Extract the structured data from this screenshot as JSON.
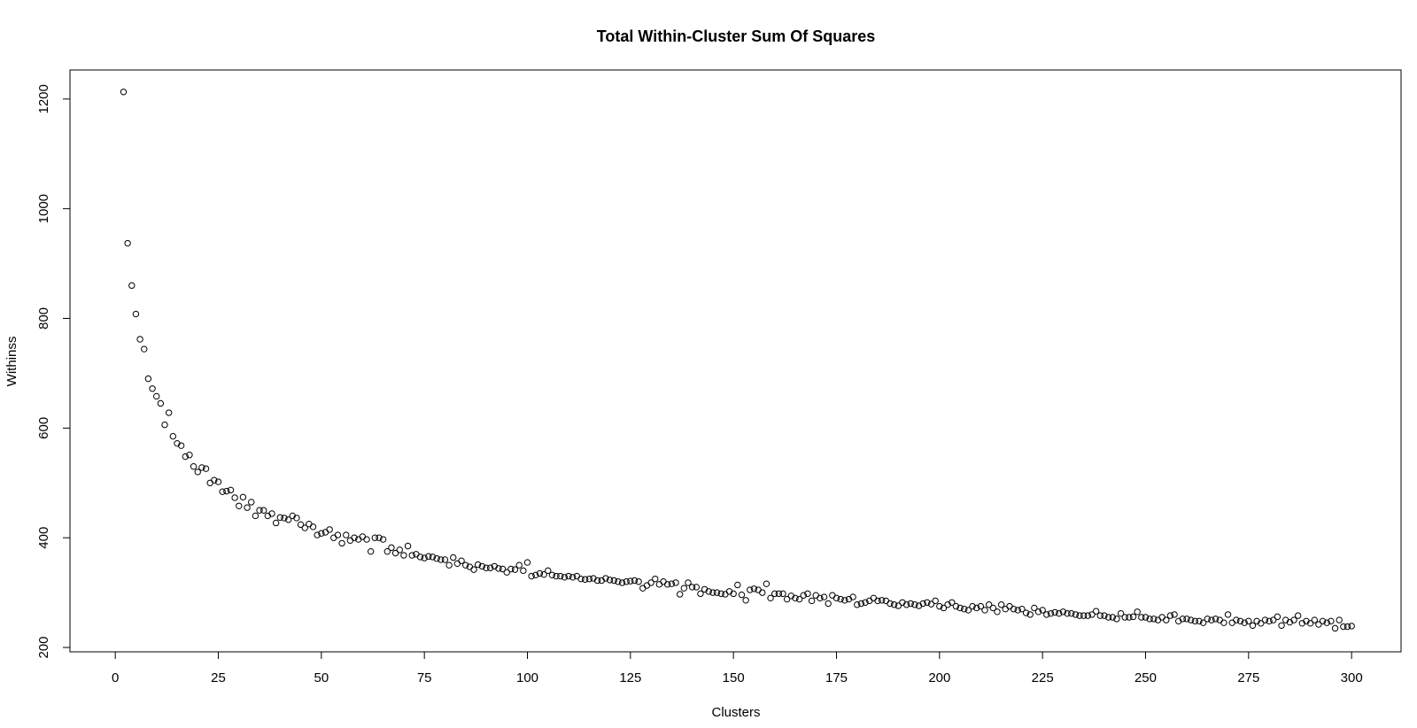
{
  "chart_data": {
    "type": "scatter",
    "title": "Total Within-Cluster Sum Of Squares",
    "x_label": "Clusters",
    "y_label": "Withinss",
    "xlim": [
      -11,
      312
    ],
    "ylim": [
      192,
      1253
    ],
    "xticks": [
      0,
      25,
      50,
      75,
      100,
      125,
      150,
      175,
      200,
      225,
      250,
      275,
      300
    ],
    "yticks": [
      200,
      400,
      600,
      800,
      1000,
      1200
    ],
    "grid": false,
    "color": "#000000",
    "x": [
      2,
      3,
      4,
      5,
      6,
      7,
      8,
      9,
      10,
      11,
      12,
      13,
      14,
      15,
      16,
      17,
      18,
      19,
      20,
      21,
      22,
      23,
      24,
      25,
      26,
      27,
      28,
      29,
      30,
      31,
      32,
      33,
      34,
      35,
      36,
      37,
      38,
      39,
      40,
      41,
      42,
      43,
      44,
      45,
      46,
      47,
      48,
      49,
      50,
      51,
      52,
      53,
      54,
      55,
      56,
      57,
      58,
      59,
      60,
      61,
      62,
      63,
      64,
      65,
      66,
      67,
      68,
      69,
      70,
      71,
      72,
      73,
      74,
      75,
      76,
      77,
      78,
      79,
      80,
      81,
      82,
      83,
      84,
      85,
      86,
      87,
      88,
      89,
      90,
      91,
      92,
      93,
      94,
      95,
      96,
      97,
      98,
      99,
      100,
      101,
      102,
      103,
      104,
      105,
      106,
      107,
      108,
      109,
      110,
      111,
      112,
      113,
      114,
      115,
      116,
      117,
      118,
      119,
      120,
      121,
      122,
      123,
      124,
      125,
      126,
      127,
      128,
      129,
      130,
      131,
      132,
      133,
      134,
      135,
      136,
      137,
      138,
      139,
      140,
      141,
      142,
      143,
      144,
      145,
      146,
      147,
      148,
      149,
      150,
      151,
      152,
      153,
      154,
      155,
      156,
      157,
      158,
      159,
      160,
      161,
      162,
      163,
      164,
      165,
      166,
      167,
      168,
      169,
      170,
      171,
      172,
      173,
      174,
      175,
      176,
      177,
      178,
      179,
      180,
      181,
      182,
      183,
      184,
      185,
      186,
      187,
      188,
      189,
      190,
      191,
      192,
      193,
      194,
      195,
      196,
      197,
      198,
      199,
      200,
      201,
      202,
      203,
      204,
      205,
      206,
      207,
      208,
      209,
      210,
      211,
      212,
      213,
      214,
      215,
      216,
      217,
      218,
      219,
      220,
      221,
      222,
      223,
      224,
      225,
      226,
      227,
      228,
      229,
      230,
      231,
      232,
      233,
      234,
      235,
      236,
      237,
      238,
      239,
      240,
      241,
      242,
      243,
      244,
      245,
      246,
      247,
      248,
      249,
      250,
      251,
      252,
      253,
      254,
      255,
      256,
      257,
      258,
      259,
      260,
      261,
      262,
      263,
      264,
      265,
      266,
      267,
      268,
      269,
      270,
      271,
      272,
      273,
      274,
      275,
      276,
      277,
      278,
      279,
      280,
      281,
      282,
      283,
      284,
      285,
      286,
      287,
      288,
      289,
      290,
      291,
      292,
      293,
      294,
      295,
      296,
      297,
      298,
      299,
      300
    ],
    "values": [
      1213,
      937,
      860,
      808,
      762,
      744,
      690,
      672,
      658,
      645,
      606,
      628,
      585,
      572,
      568,
      548,
      551,
      530,
      520,
      528,
      526,
      500,
      505,
      502,
      484,
      485,
      487,
      473,
      458,
      474,
      455,
      465,
      440,
      450,
      450,
      440,
      444,
      427,
      437,
      436,
      433,
      440,
      436,
      424,
      418,
      425,
      420,
      405,
      408,
      410,
      415,
      400,
      405,
      390,
      405,
      395,
      400,
      397,
      402,
      397,
      375,
      400,
      400,
      397,
      375,
      382,
      372,
      378,
      368,
      385,
      368,
      370,
      365,
      363,
      366,
      365,
      362,
      360,
      360,
      350,
      364,
      353,
      358,
      350,
      347,
      342,
      351,
      348,
      345,
      345,
      348,
      344,
      343,
      337,
      343,
      342,
      350,
      340,
      355,
      330,
      332,
      335,
      333,
      340,
      332,
      330,
      330,
      328,
      330,
      328,
      330,
      325,
      324,
      325,
      326,
      322,
      322,
      326,
      323,
      322,
      320,
      318,
      320,
      321,
      322,
      320,
      308,
      313,
      318,
      325,
      315,
      320,
      315,
      316,
      318,
      297,
      308,
      318,
      310,
      310,
      298,
      306,
      302,
      300,
      300,
      298,
      297,
      302,
      298,
      314,
      296,
      286,
      305,
      307,
      305,
      300,
      316,
      290,
      298,
      298,
      298,
      288,
      294,
      290,
      288,
      295,
      298,
      285,
      295,
      290,
      292,
      280,
      295,
      290,
      288,
      286,
      288,
      292,
      278,
      280,
      282,
      285,
      290,
      285,
      286,
      285,
      280,
      278,
      276,
      282,
      278,
      280,
      278,
      276,
      280,
      282,
      279,
      285,
      275,
      272,
      278,
      282,
      275,
      272,
      270,
      268,
      275,
      272,
      275,
      268,
      278,
      272,
      265,
      278,
      270,
      275,
      270,
      268,
      270,
      263,
      260,
      272,
      265,
      268,
      260,
      262,
      264,
      262,
      265,
      262,
      262,
      260,
      258,
      258,
      258,
      260,
      266,
      258,
      258,
      255,
      255,
      252,
      262,
      255,
      255,
      256,
      265,
      255,
      255,
      252,
      252,
      250,
      255,
      250,
      258,
      260,
      248,
      252,
      252,
      250,
      248,
      248,
      245,
      252,
      250,
      252,
      250,
      245,
      260,
      245,
      250,
      248,
      245,
      248,
      240,
      248,
      244,
      250,
      248,
      250,
      256,
      240,
      250,
      246,
      250,
      258,
      244,
      248,
      244,
      250,
      242,
      248,
      245,
      248,
      235,
      250,
      238,
      238,
      239
    ]
  }
}
